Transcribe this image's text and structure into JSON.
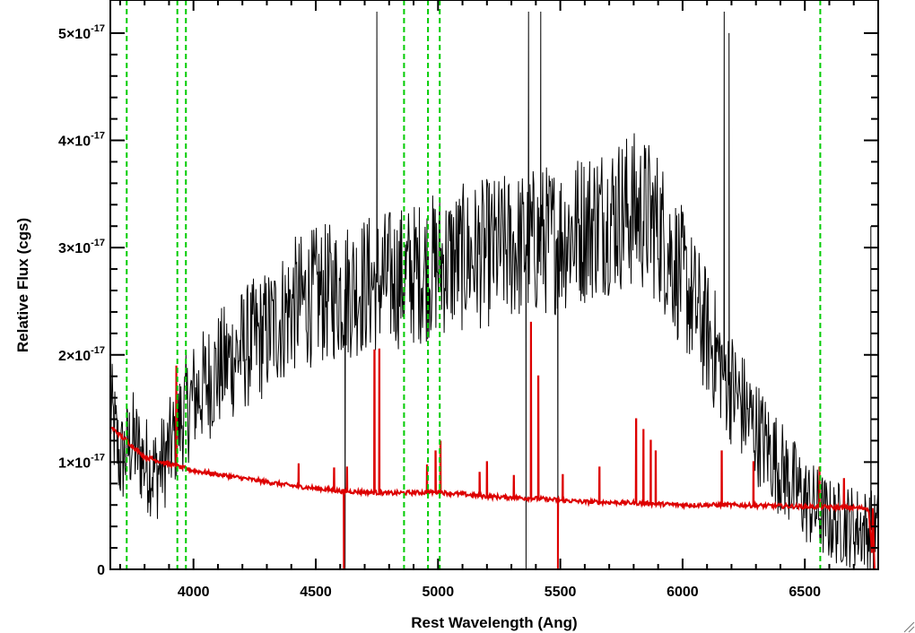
{
  "chart_data": {
    "type": "line",
    "title": "",
    "xlabel": "Rest Wavelength (Ang)",
    "ylabel": "Relative Flux (cgs)",
    "xlim": [
      3660,
      6800
    ],
    "ylim": [
      0,
      5.2
    ],
    "y_unit_exponent": "-17",
    "x_ticks": [
      4000,
      4500,
      5000,
      5500,
      6000,
      6500
    ],
    "x_tick_labels": [
      "4000",
      "4500",
      "5000",
      "5500",
      "6000",
      "6500"
    ],
    "y_ticks": [
      0,
      1,
      2,
      3,
      4,
      5
    ],
    "y_tick_labels": [
      "0",
      "1×10",
      "2×10",
      "3×10",
      "4×10",
      "5×10"
    ],
    "grid": false,
    "reference_lines": {
      "color": "#00cc00",
      "style": "dashed",
      "x": [
        3727,
        3934,
        3969,
        4861,
        4959,
        5007,
        6563
      ]
    },
    "series": [
      {
        "color": "#000000",
        "points": [
          [
            3660,
            1.5
          ],
          [
            3700,
            1.0
          ],
          [
            3750,
            1.2
          ],
          [
            3800,
            1.0
          ],
          [
            3850,
            0.9
          ],
          [
            3900,
            1.1
          ],
          [
            3950,
            1.4
          ],
          [
            4000,
            1.6
          ],
          [
            4100,
            1.85
          ],
          [
            4200,
            2.05
          ],
          [
            4300,
            2.2
          ],
          [
            4400,
            2.45
          ],
          [
            4500,
            2.55
          ],
          [
            4600,
            2.6
          ],
          [
            4700,
            2.65
          ],
          [
            4800,
            2.7
          ],
          [
            4900,
            2.75
          ],
          [
            5000,
            2.85
          ],
          [
            5100,
            2.9
          ],
          [
            5200,
            2.95
          ],
          [
            5300,
            3.0
          ],
          [
            5400,
            3.05
          ],
          [
            5500,
            3.1
          ],
          [
            5600,
            3.2
          ],
          [
            5700,
            3.3
          ],
          [
            5800,
            3.35
          ],
          [
            5850,
            3.3
          ],
          [
            5900,
            3.2
          ],
          [
            6000,
            2.7
          ],
          [
            6100,
            2.2
          ],
          [
            6200,
            1.7
          ],
          [
            6300,
            1.3
          ],
          [
            6400,
            0.95
          ],
          [
            6500,
            0.65
          ],
          [
            6600,
            0.45
          ],
          [
            6700,
            0.4
          ],
          [
            6800,
            0.35
          ]
        ],
        "spikes": [
          [
            4750,
            5.2
          ],
          [
            5370,
            5.2
          ],
          [
            5420,
            5.2
          ],
          [
            6170,
            5.2
          ],
          [
            6190,
            5.0
          ],
          [
            6770,
            3.2
          ]
        ],
        "dips": [
          [
            4620,
            0.0
          ],
          [
            5360,
            0.0
          ],
          [
            5490,
            0.0
          ],
          [
            6780,
            0.0
          ]
        ]
      },
      {
        "color": "#dd0000",
        "points": [
          [
            3660,
            1.33
          ],
          [
            3700,
            1.25
          ],
          [
            3750,
            1.15
          ],
          [
            3800,
            1.05
          ],
          [
            3900,
            0.98
          ],
          [
            4000,
            0.92
          ],
          [
            4200,
            0.85
          ],
          [
            4400,
            0.78
          ],
          [
            4600,
            0.73
          ],
          [
            4800,
            0.71
          ],
          [
            5000,
            0.72
          ],
          [
            5200,
            0.68
          ],
          [
            5400,
            0.66
          ],
          [
            5600,
            0.63
          ],
          [
            5800,
            0.62
          ],
          [
            6000,
            0.6
          ],
          [
            6200,
            0.6
          ],
          [
            6400,
            0.59
          ],
          [
            6600,
            0.58
          ],
          [
            6760,
            0.57
          ],
          [
            6780,
            0.0
          ]
        ],
        "emission_lines": [
          [
            3830,
            1.05
          ],
          [
            3930,
            1.9
          ],
          [
            4430,
            0.98
          ],
          [
            4575,
            0.95
          ],
          [
            4628,
            0.95
          ],
          [
            4740,
            2.05
          ],
          [
            4760,
            2.05
          ],
          [
            4955,
            0.97
          ],
          [
            4990,
            1.1
          ],
          [
            5010,
            1.2
          ],
          [
            5170,
            0.9
          ],
          [
            5200,
            1.0
          ],
          [
            5310,
            0.88
          ],
          [
            5380,
            2.3
          ],
          [
            5410,
            1.8
          ],
          [
            5510,
            0.88
          ],
          [
            5660,
            0.95
          ],
          [
            5810,
            1.4
          ],
          [
            5840,
            1.3
          ],
          [
            5870,
            1.2
          ],
          [
            5890,
            1.1
          ],
          [
            6160,
            1.1
          ],
          [
            6290,
            1.0
          ],
          [
            6560,
            0.95
          ],
          [
            6660,
            0.85
          ]
        ],
        "absorption_dips": [
          [
            4615,
            0.0
          ],
          [
            5490,
            0.0
          ]
        ]
      }
    ]
  }
}
